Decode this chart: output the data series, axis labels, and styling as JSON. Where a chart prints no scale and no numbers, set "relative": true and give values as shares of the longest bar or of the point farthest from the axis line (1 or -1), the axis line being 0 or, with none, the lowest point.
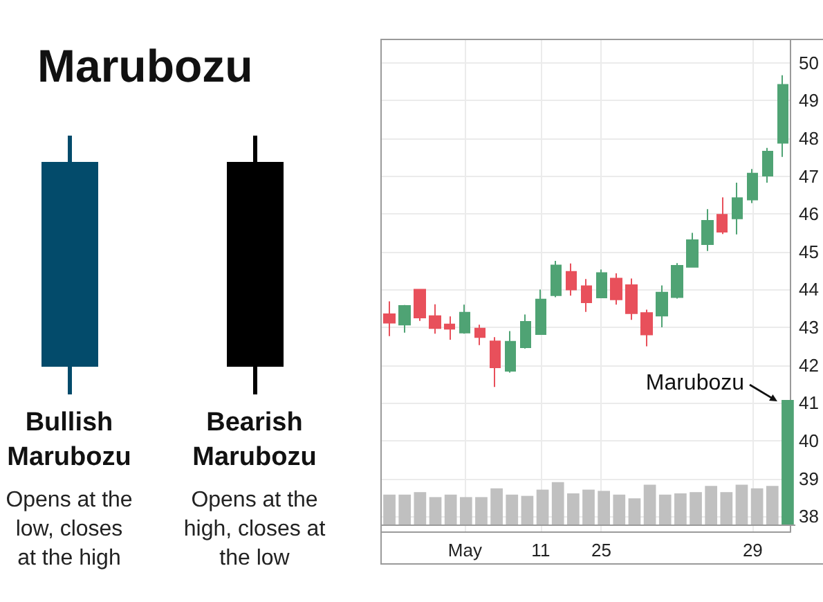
{
  "chart_data": [
    {
      "type": "other",
      "title": "Marubozu",
      "annotations": [
        "Bullish Marubozu",
        "Opens at the low, closes at the high",
        "Bearish Marubozu",
        "Opens at the high, closes at the low"
      ]
    },
    {
      "type": "candlestick",
      "categories": [
        null,
        null,
        null,
        null,
        null,
        "May",
        null,
        null,
        null,
        null,
        "11",
        null,
        null,
        null,
        "25",
        null,
        null,
        null,
        null,
        null,
        null,
        null,
        null,
        null,
        "29",
        null,
        null
      ],
      "ohlc": [
        [
          43.35,
          43.69,
          42.77,
          43.12
        ],
        [
          43.07,
          43.59,
          42.86,
          43.57
        ],
        [
          44.0,
          44.0,
          43.17,
          43.26
        ],
        [
          43.3,
          43.61,
          42.83,
          42.98
        ],
        [
          43.08,
          43.29,
          42.67,
          42.96
        ],
        [
          42.86,
          43.6,
          42.83,
          43.39
        ],
        [
          42.97,
          43.07,
          42.53,
          42.74
        ],
        [
          42.63,
          42.74,
          41.42,
          41.94
        ],
        [
          41.85,
          42.9,
          41.8,
          42.62
        ],
        [
          42.47,
          43.34,
          42.44,
          43.15
        ],
        [
          42.82,
          44.0,
          42.82,
          43.74
        ],
        [
          43.85,
          44.76,
          43.8,
          44.64
        ],
        [
          44.47,
          44.69,
          43.84,
          44.0
        ],
        [
          44.09,
          44.28,
          43.41,
          43.66
        ],
        [
          43.79,
          44.53,
          43.78,
          44.44
        ],
        [
          44.29,
          44.43,
          43.6,
          43.74
        ],
        [
          44.12,
          44.29,
          43.2,
          43.37
        ],
        [
          43.38,
          43.47,
          42.5,
          42.81
        ],
        [
          43.31,
          44.11,
          43.0,
          43.92
        ],
        [
          43.8,
          44.7,
          43.76,
          44.63
        ],
        [
          44.6,
          45.5,
          44.6,
          45.31
        ],
        [
          45.2,
          46.13,
          45.02,
          45.82
        ],
        [
          45.98,
          46.44,
          45.47,
          45.53
        ],
        [
          45.88,
          46.83,
          45.46,
          46.42
        ],
        [
          46.38,
          47.19,
          46.29,
          47.07
        ],
        [
          47.01,
          47.75,
          46.83,
          47.65
        ],
        [
          47.88,
          49.67,
          47.51,
          49.42
        ]
      ],
      "colors": [
        "#e8505b",
        "#4fa374",
        "#e8505b",
        "#e8505b",
        "#e8505b",
        "#4fa374",
        "#e8505b",
        "#e8505b",
        "#4fa374",
        "#4fa374",
        "#4fa374",
        "#4fa374",
        "#e8505b",
        "#e8505b",
        "#4fa374",
        "#e8505b",
        "#e8505b",
        "#e8505b",
        "#4fa374",
        "#4fa374",
        "#4fa374",
        "#4fa374",
        "#e8505b",
        "#4fa374",
        "#4fa374",
        "#4fa374",
        "#4fa374"
      ],
      "ylim": [
        37.6,
        50.6
      ],
      "yticks": [
        38,
        39,
        40,
        41,
        42,
        43,
        44,
        45,
        46,
        47,
        48,
        49,
        50
      ],
      "grid": true
    },
    {
      "type": "bar",
      "relative": true,
      "categories": [
        null,
        null,
        null,
        null,
        null,
        null,
        null,
        null,
        null,
        null,
        null,
        null,
        null,
        null,
        null,
        null,
        null,
        null,
        null,
        null,
        null,
        null,
        null,
        null,
        null,
        null,
        null
      ],
      "values": [
        0.24,
        0.24,
        0.26,
        0.22,
        0.24,
        0.22,
        0.22,
        0.29,
        0.24,
        0.23,
        0.28,
        0.34,
        0.25,
        0.28,
        0.27,
        0.24,
        0.21,
        0.32,
        0.24,
        0.25,
        0.26,
        0.31,
        0.26,
        0.32,
        0.29,
        0.31,
        1
      ],
      "colors": [
        "#c0c0c0",
        "#c0c0c0",
        "#c0c0c0",
        "#c0c0c0",
        "#c0c0c0",
        "#c0c0c0",
        "#c0c0c0",
        "#c0c0c0",
        "#c0c0c0",
        "#c0c0c0",
        "#c0c0c0",
        "#c0c0c0",
        "#c0c0c0",
        "#c0c0c0",
        "#c0c0c0",
        "#c0c0c0",
        "#c0c0c0",
        "#c0c0c0",
        "#c0c0c0",
        "#c0c0c0",
        "#c0c0c0",
        "#c0c0c0",
        "#c0c0c0",
        "#c0c0c0",
        "#c0c0c0",
        "#c0c0c0",
        "#4fa374"
      ],
      "annotations": [
        "Marubozu"
      ]
    }
  ]
}
